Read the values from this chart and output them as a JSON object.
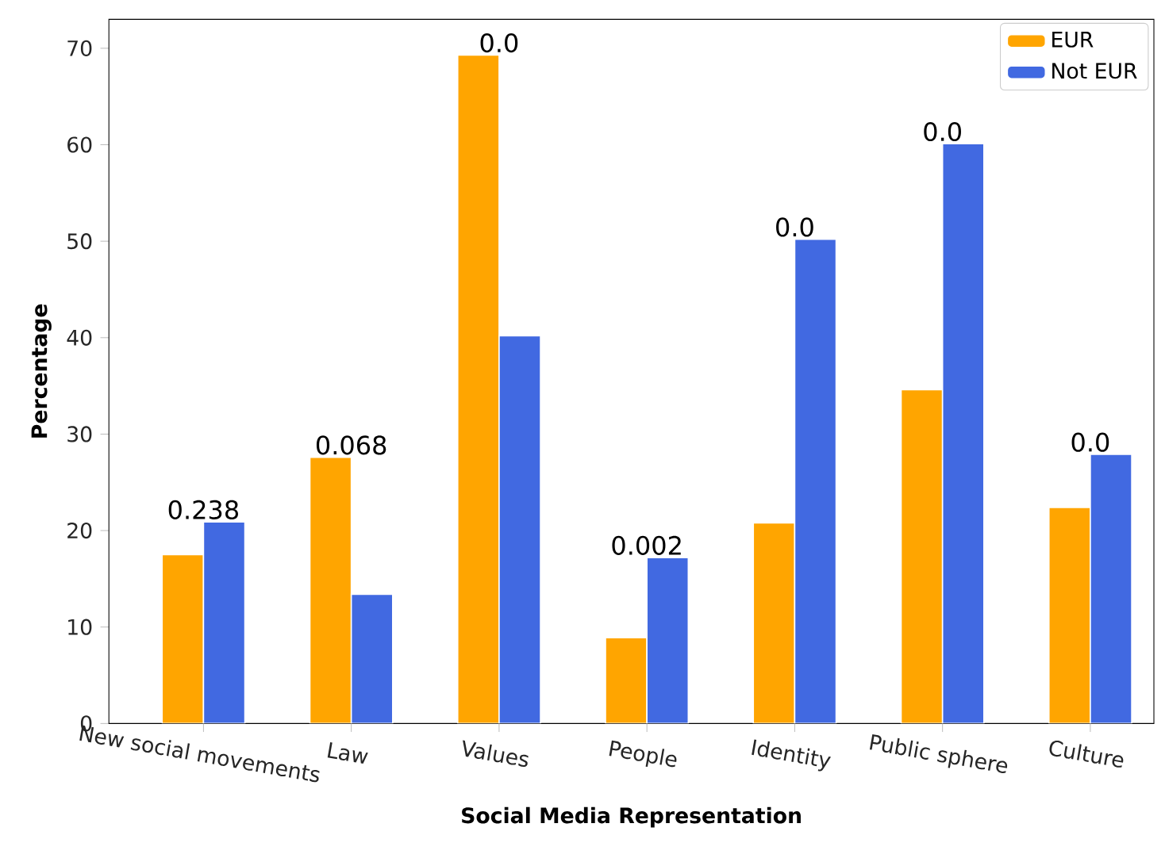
{
  "chart_data": {
    "type": "bar",
    "xlabel": "Social Media Representation",
    "ylabel": "Percentage",
    "categories": [
      "New social movements",
      "Law",
      "Values",
      "People",
      "Identity",
      "Public sphere",
      "Culture"
    ],
    "series": [
      {
        "name": "EUR",
        "color": "#ffa500",
        "values": [
          17.5,
          27.6,
          69.3,
          8.9,
          20.8,
          34.6,
          22.4
        ]
      },
      {
        "name": "Not EUR",
        "color": "#4169e1",
        "values": [
          20.9,
          13.4,
          40.2,
          17.2,
          50.2,
          60.1,
          27.9
        ]
      }
    ],
    "ylim": [
      0,
      73
    ],
    "yticks": [
      0,
      10,
      20,
      30,
      40,
      50,
      60,
      70
    ],
    "legend": "top right",
    "annotations": [
      {
        "text": "0.238",
        "x": "New social movements",
        "y": 20.9
      },
      {
        "text": "0.068",
        "x": "Law",
        "y": 27.6
      },
      {
        "text": "0.0",
        "x": "Values",
        "y": 69.3
      },
      {
        "text": "0.002",
        "x": "People",
        "y": 17.2
      },
      {
        "text": "0.0",
        "x": "Identity",
        "y": 50.2
      },
      {
        "text": "0.0",
        "x": "Public sphere",
        "y": 60.1
      },
      {
        "text": "0.0",
        "x": "Culture",
        "y": 27.9
      }
    ]
  }
}
